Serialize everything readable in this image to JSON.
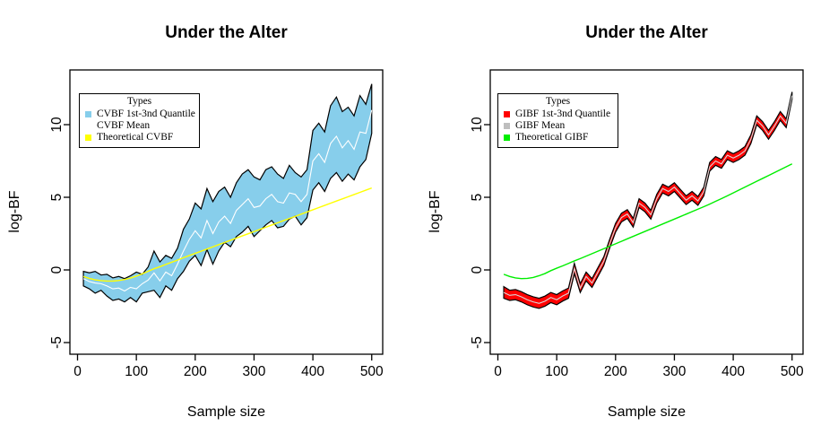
{
  "figure": {
    "background": "#ffffff"
  },
  "chart_data": [
    {
      "type": "area",
      "title": "Under the Alter",
      "xlabel": "Sample size",
      "ylabel": "log-BF",
      "xticks": [
        0,
        100,
        200,
        300,
        400,
        500
      ],
      "yticks": [
        -5,
        0,
        5,
        10
      ],
      "xlim": [
        -10,
        520
      ],
      "ylim": [
        -5.8,
        13.8
      ],
      "grid": false,
      "legend": {
        "title": "Types",
        "position": "top-left",
        "items": [
          {
            "label": "CVBF 1st-3nd Quantile",
            "color": "#87CEEB"
          },
          {
            "label": "CVBF Mean",
            "color": "#FFFFFF"
          },
          {
            "label": "Theoretical CVBF",
            "color": "#FFFF00"
          }
        ]
      },
      "band_color": "#87CEEB",
      "band_border": "#000000",
      "mean_color": "#FFFFFF",
      "theory_color": "#FFFF00",
      "samples": [
        10,
        20,
        30,
        40,
        50,
        60,
        70,
        80,
        90,
        100,
        110,
        120,
        130,
        140,
        150,
        160,
        170,
        180,
        190,
        200,
        210,
        220,
        230,
        240,
        250,
        260,
        270,
        280,
        290,
        300,
        310,
        320,
        330,
        340,
        350,
        360,
        370,
        380,
        390,
        400,
        410,
        420,
        430,
        440,
        450,
        460,
        470,
        480,
        490,
        500
      ],
      "upper": [
        -0.1,
        -0.2,
        -0.1,
        -0.35,
        -0.3,
        -0.55,
        -0.45,
        -0.6,
        -0.4,
        -0.15,
        -0.3,
        0.2,
        1.3,
        0.55,
        1.0,
        0.8,
        1.5,
        2.8,
        3.5,
        4.6,
        4.2,
        5.6,
        4.7,
        5.4,
        5.7,
        5.0,
        6.0,
        6.6,
        6.9,
        6.4,
        6.2,
        6.9,
        7.1,
        6.6,
        6.3,
        7.2,
        6.7,
        6.4,
        6.9,
        9.6,
        10.1,
        9.5,
        11.3,
        11.9,
        10.9,
        11.2,
        10.6,
        12.0,
        11.4,
        12.8
      ],
      "lower": [
        -1.1,
        -1.3,
        -1.6,
        -1.4,
        -1.8,
        -2.1,
        -2.0,
        -2.2,
        -1.9,
        -2.2,
        -1.6,
        -1.5,
        -1.4,
        -1.9,
        -1.1,
        -1.4,
        -0.6,
        -0.1,
        0.6,
        1.0,
        0.3,
        1.4,
        0.4,
        1.3,
        1.9,
        1.6,
        2.3,
        2.6,
        3.0,
        2.3,
        2.7,
        3.1,
        3.4,
        2.9,
        3.0,
        3.5,
        3.7,
        3.1,
        3.6,
        5.5,
        6.0,
        5.4,
        6.3,
        6.7,
        6.1,
        6.6,
        6.2,
        7.1,
        7.6,
        9.4
      ],
      "mean": [
        -0.6,
        -0.8,
        -0.9,
        -0.95,
        -1.1,
        -1.3,
        -1.25,
        -1.45,
        -1.2,
        -1.3,
        -0.95,
        -0.7,
        -0.2,
        -0.75,
        -0.15,
        -0.4,
        0.4,
        1.3,
        2.1,
        2.7,
        2.2,
        3.4,
        2.5,
        3.3,
        3.7,
        3.2,
        4.1,
        4.5,
        4.9,
        4.3,
        4.4,
        4.9,
        5.2,
        4.7,
        4.6,
        5.3,
        5.2,
        4.7,
        5.2,
        7.5,
        8.0,
        7.4,
        8.7,
        9.2,
        8.4,
        8.9,
        8.3,
        9.5,
        9.4,
        11.0
      ],
      "theory": [
        -0.45,
        -0.58,
        -0.68,
        -0.74,
        -0.77,
        -0.77,
        -0.73,
        -0.66,
        -0.56,
        -0.43,
        -0.27,
        -0.09,
        0.08,
        0.22,
        0.38,
        0.53,
        0.68,
        0.84,
        0.99,
        1.14,
        1.29,
        1.44,
        1.59,
        1.74,
        1.89,
        2.04,
        2.19,
        2.34,
        2.49,
        2.64,
        2.79,
        2.94,
        3.09,
        3.24,
        3.39,
        3.54,
        3.69,
        3.84,
        3.99,
        4.14,
        4.29,
        4.44,
        4.59,
        4.74,
        4.89,
        5.04,
        5.19,
        5.34,
        5.49,
        5.64
      ]
    },
    {
      "type": "area",
      "title": "Under the Alter",
      "xlabel": "Sample size",
      "ylabel": "log-BF",
      "xticks": [
        0,
        100,
        200,
        300,
        400,
        500
      ],
      "yticks": [
        -5,
        0,
        5,
        10
      ],
      "xlim": [
        -10,
        520
      ],
      "ylim": [
        -5.8,
        13.8
      ],
      "grid": false,
      "legend": {
        "title": "Types",
        "position": "top-left",
        "items": [
          {
            "label": "GIBF 1st-3nd Quantile",
            "color": "#FF0000"
          },
          {
            "label": "GIBF Mean",
            "color": "#BEBEBE"
          },
          {
            "label": "Theoretical GIBF",
            "color": "#00EE00"
          }
        ]
      },
      "band_color": "#FF0000",
      "band_border": "#000000",
      "mean_color": "#D9D9D9",
      "theory_color": "#00EE00",
      "samples": [
        10,
        20,
        30,
        40,
        50,
        60,
        70,
        80,
        90,
        100,
        110,
        120,
        130,
        140,
        150,
        160,
        170,
        180,
        190,
        200,
        210,
        220,
        230,
        240,
        250,
        260,
        270,
        280,
        290,
        300,
        310,
        320,
        330,
        340,
        350,
        360,
        370,
        380,
        390,
        400,
        410,
        420,
        430,
        440,
        450,
        460,
        470,
        480,
        490,
        500
      ],
      "upper": [
        -1.15,
        -1.4,
        -1.35,
        -1.5,
        -1.7,
        -1.85,
        -1.95,
        -1.8,
        -1.55,
        -1.7,
        -1.45,
        -1.25,
        0.45,
        -0.95,
        -0.15,
        -0.6,
        0.15,
        0.9,
        2.1,
        3.2,
        3.9,
        4.15,
        3.55,
        4.9,
        4.6,
        4.1,
        5.2,
        5.9,
        5.7,
        6.0,
        5.55,
        5.1,
        5.4,
        5.05,
        5.7,
        7.4,
        7.8,
        7.6,
        8.2,
        8.0,
        8.2,
        8.5,
        9.3,
        10.6,
        10.2,
        9.6,
        10.2,
        10.9,
        10.4,
        12.25
      ],
      "lower": [
        -1.95,
        -2.1,
        -2.05,
        -2.2,
        -2.4,
        -2.55,
        -2.65,
        -2.5,
        -2.25,
        -2.4,
        -2.15,
        -1.95,
        -0.25,
        -1.55,
        -0.75,
        -1.2,
        -0.45,
        0.3,
        1.5,
        2.6,
        3.3,
        3.55,
        2.95,
        4.3,
        4.0,
        3.5,
        4.6,
        5.3,
        5.1,
        5.4,
        4.95,
        4.5,
        4.8,
        4.45,
        5.1,
        6.8,
        7.2,
        7.0,
        7.6,
        7.4,
        7.6,
        7.9,
        8.7,
        10.0,
        9.6,
        9.0,
        9.6,
        10.3,
        9.8,
        11.75
      ],
      "mean": [
        -1.55,
        -1.75,
        -1.7,
        -1.85,
        -2.05,
        -2.2,
        -2.3,
        -2.15,
        -1.9,
        -2.05,
        -1.8,
        -1.6,
        0.1,
        -1.25,
        -0.45,
        -0.9,
        -0.15,
        0.6,
        1.8,
        2.9,
        3.6,
        3.85,
        3.25,
        4.6,
        4.3,
        3.8,
        4.9,
        5.6,
        5.4,
        5.7,
        5.25,
        4.8,
        5.1,
        4.75,
        5.4,
        7.1,
        7.5,
        7.3,
        7.9,
        7.7,
        7.9,
        8.2,
        9.0,
        10.3,
        9.9,
        9.3,
        9.9,
        10.6,
        10.1,
        12.0
      ],
      "theory": [
        -0.3,
        -0.45,
        -0.55,
        -0.6,
        -0.58,
        -0.52,
        -0.4,
        -0.25,
        -0.05,
        0.12,
        0.28,
        0.45,
        0.62,
        0.78,
        0.95,
        1.12,
        1.29,
        1.46,
        1.63,
        1.8,
        1.97,
        2.14,
        2.31,
        2.48,
        2.65,
        2.82,
        2.99,
        3.16,
        3.33,
        3.5,
        3.67,
        3.84,
        4.01,
        4.18,
        4.35,
        4.53,
        4.72,
        4.91,
        5.1,
        5.3,
        5.5,
        5.7,
        5.9,
        6.1,
        6.3,
        6.5,
        6.7,
        6.9,
        7.1,
        7.3
      ]
    }
  ]
}
